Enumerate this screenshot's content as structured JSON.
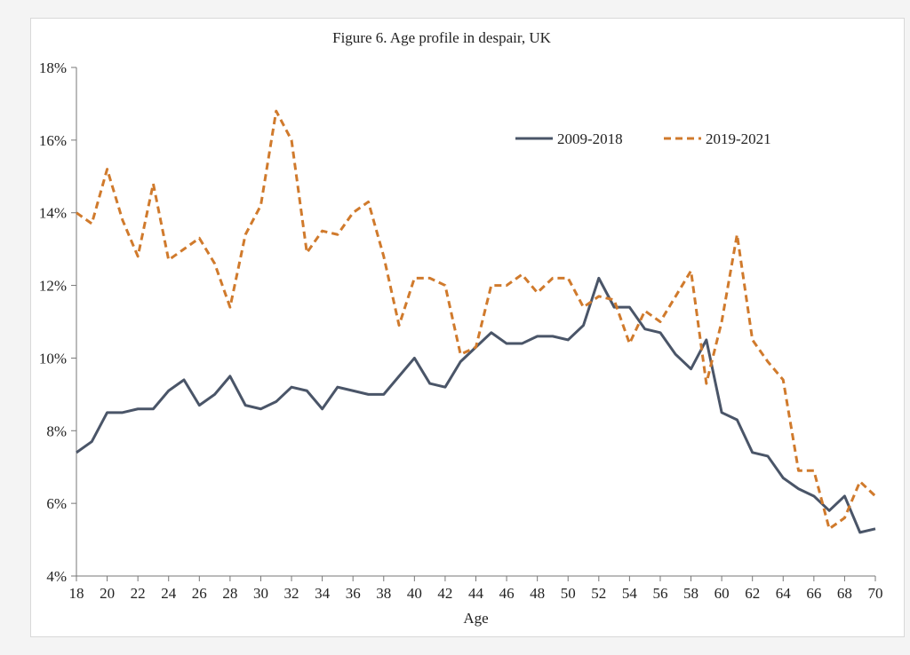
{
  "chart_data": {
    "type": "line",
    "title": "Figure 6.  Age profile in despair, UK",
    "xlabel": "Age",
    "ylabel": "",
    "xlim": [
      18,
      70
    ],
    "ylim": [
      4,
      18
    ],
    "x_ticks": [
      18,
      20,
      22,
      24,
      26,
      28,
      30,
      32,
      34,
      36,
      38,
      40,
      42,
      44,
      46,
      48,
      50,
      52,
      54,
      56,
      58,
      60,
      62,
      64,
      66,
      68,
      70
    ],
    "y_ticks": [
      4,
      6,
      8,
      10,
      12,
      14,
      16,
      18
    ],
    "y_tick_labels": [
      "4%",
      "6%",
      "8%",
      "10%",
      "12%",
      "14%",
      "16%",
      "18%"
    ],
    "grid": false,
    "legend": "top-right, inside plot",
    "x": [
      18,
      19,
      20,
      21,
      22,
      23,
      24,
      25,
      26,
      27,
      28,
      29,
      30,
      31,
      32,
      33,
      34,
      35,
      36,
      37,
      38,
      39,
      40,
      41,
      42,
      43,
      44,
      45,
      46,
      47,
      48,
      49,
      50,
      51,
      52,
      53,
      54,
      55,
      56,
      57,
      58,
      59,
      60,
      61,
      62,
      63,
      64,
      65,
      66,
      67,
      68,
      69,
      70
    ],
    "series": [
      {
        "name": "2009-2018",
        "color": "#4a5568",
        "style": "solid",
        "values": [
          7.4,
          7.7,
          8.5,
          8.5,
          8.6,
          8.6,
          9.1,
          9.4,
          8.7,
          9.0,
          9.5,
          8.7,
          8.6,
          8.8,
          9.2,
          9.1,
          8.6,
          9.2,
          9.1,
          9.0,
          9.0,
          9.5,
          10.0,
          9.3,
          9.2,
          9.9,
          10.3,
          10.7,
          10.4,
          10.4,
          10.6,
          10.6,
          10.5,
          10.9,
          12.2,
          11.4,
          11.4,
          10.8,
          10.7,
          10.1,
          9.7,
          10.5,
          8.5,
          8.3,
          7.4,
          7.3,
          6.7,
          6.4,
          6.2,
          5.8,
          6.2,
          5.2,
          5.3
        ]
      },
      {
        "name": "2019-2021",
        "color": "#d07a2c",
        "style": "dashed",
        "values": [
          14.0,
          13.7,
          15.2,
          13.8,
          12.8,
          14.8,
          12.7,
          13.0,
          13.3,
          12.6,
          11.4,
          13.4,
          14.2,
          16.8,
          16.0,
          12.9,
          13.5,
          13.4,
          14.0,
          14.3,
          12.8,
          10.9,
          12.2,
          12.2,
          12.0,
          10.1,
          10.3,
          12.0,
          12.0,
          12.3,
          11.8,
          12.2,
          12.2,
          11.4,
          11.7,
          11.6,
          10.4,
          11.3,
          11.0,
          11.7,
          12.4,
          9.3,
          11.0,
          13.4,
          10.5,
          9.9,
          9.4,
          6.9,
          6.9,
          5.3,
          5.6,
          6.6,
          6.2
        ]
      }
    ]
  }
}
